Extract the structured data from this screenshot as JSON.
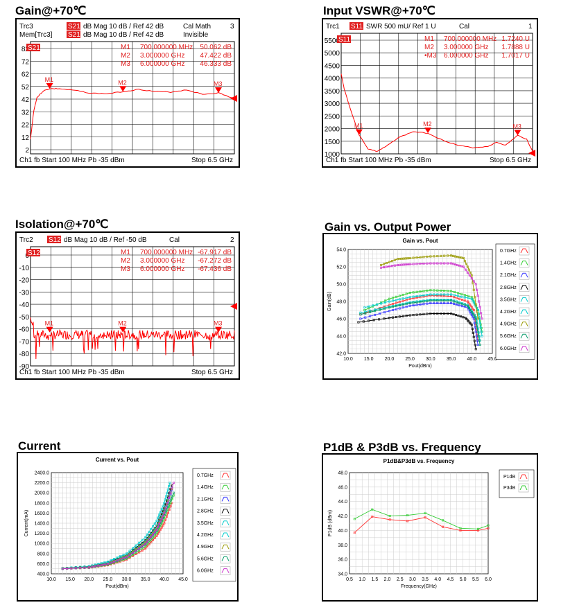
{
  "titles": {
    "gain": "Gain@+70℃",
    "vswr": "Input VSWR@+70℃",
    "isolation": "Isolation@+70℃",
    "gain_pout": "Gain vs. Output Power",
    "current": "Current",
    "p1db": "P1dB & P3dB vs. Frequency"
  },
  "chart_data": [
    {
      "id": "gain",
      "type": "line",
      "header": [
        {
          "left": "Trc3",
          "badge": "S21",
          "text": "dB Mag   10 dB /  Ref 42 dB",
          "right": "Cal Math",
          "num": "3"
        },
        {
          "left": "Mem[Trc3]",
          "badge": "S21",
          "text": "dB Mag   10 dB /  Ref 42 dB",
          "right": "Invisible",
          "num": ""
        }
      ],
      "trace_label": "S21",
      "markers": [
        {
          "name": "M1",
          "freq": "700.000000 MHz",
          "value": "50.062 dB"
        },
        {
          "name": "M2",
          "freq": "3.000000 GHz",
          "value": "47.422 dB"
        },
        {
          "name": "M3",
          "freq": "6.000000 GHz",
          "value": "46.333 dB"
        }
      ],
      "y_ticks": [
        "82",
        "72",
        "62",
        "52",
        "42",
        "32",
        "22",
        "12",
        "2"
      ],
      "footer": {
        "left": "Ch1  fb  Start  100 MHz  Pb   -35 dBm",
        "right": "Stop  6.5 GHz"
      },
      "x": [
        0.1,
        0.2,
        0.3,
        0.5,
        0.7,
        1.0,
        1.5,
        2.0,
        2.5,
        3.0,
        3.5,
        4.0,
        4.5,
        5.0,
        5.5,
        6.0,
        6.5
      ],
      "y": [
        5,
        30,
        42,
        48,
        50,
        50,
        48.5,
        46,
        45.5,
        47.4,
        49.5,
        47.5,
        47,
        49,
        45,
        46.3,
        41
      ],
      "ylim": [
        -8,
        92
      ],
      "xlim": [
        0.1,
        6.5
      ]
    },
    {
      "id": "vswr",
      "type": "line",
      "header": [
        {
          "left": "Trc1",
          "badge": "S11",
          "text": "SWR   500 mU/  Ref 1 U",
          "right": "Cal",
          "num": "1"
        }
      ],
      "trace_label": "S11",
      "markers": [
        {
          "name": "M1",
          "freq": "700.000000 MHz",
          "value": "1.7240  U"
        },
        {
          "name": "M2",
          "freq": "3.000000 GHz",
          "value": "1.7888  U"
        },
        {
          "name": "•M3",
          "freq": "6.000000 GHz",
          "value": "1.7017  U"
        }
      ],
      "y_ticks": [
        "5500",
        "5000",
        "4500",
        "4000",
        "3500",
        "3000",
        "2500",
        "2000",
        "1500",
        "1000"
      ],
      "footer": {
        "left": "Ch1  fb  Start  100 MHz  Pb   -35 dBm",
        "right": "Stop  6.5 GHz"
      },
      "x": [
        0.1,
        0.2,
        0.4,
        0.7,
        1.0,
        1.3,
        1.6,
        2.0,
        2.5,
        3.0,
        3.5,
        4.0,
        4.5,
        5.0,
        5.3,
        5.6,
        6.0,
        6.3,
        6.5
      ],
      "y": [
        4.2,
        3.6,
        2.8,
        1.72,
        1.15,
        1.05,
        1.25,
        1.6,
        1.85,
        1.79,
        1.5,
        1.3,
        1.2,
        1.25,
        1.42,
        1.3,
        1.7,
        1.55,
        1.05
      ],
      "ylim": [
        0.95,
        5.85
      ],
      "xlim": [
        0.1,
        6.5
      ]
    },
    {
      "id": "isolation",
      "type": "line",
      "header": [
        {
          "left": "Trc2",
          "badge": "S12",
          "text": "dB Mag   10 dB /  Ref -50 dB",
          "right": "Cal",
          "num": "2"
        }
      ],
      "trace_label": "S12",
      "markers": [
        {
          "name": "M1",
          "freq": "700.000000 MHz",
          "value": "-67.917 dB"
        },
        {
          "name": "M2",
          "freq": "3.000000 GHz",
          "value": "-67.272 dB"
        },
        {
          "name": "M3",
          "freq": "6.000000 GHz",
          "value": "-67.436 dB"
        }
      ],
      "y_ticks": [
        "0",
        "-10",
        "-20",
        "-30",
        "-40",
        "-50",
        "-60",
        "-70",
        "-80",
        "-90"
      ],
      "footer": {
        "left": "Ch1  fb  Start  100 MHz  Pb   -35 dBm",
        "right": "Stop  6.5 GHz"
      },
      "x": [
        0.1,
        6.5
      ],
      "y": [
        -68,
        -68
      ],
      "ylim": [
        -95,
        8
      ],
      "xlim": [
        0.1,
        6.5
      ]
    },
    {
      "id": "gain_pout",
      "type": "line",
      "title": "Gain vs. Pout",
      "xlabel": "Pout(dBm)",
      "ylabel": "Gain(dB)",
      "xlim": [
        10,
        45
      ],
      "ylim": [
        42,
        54
      ],
      "x_ticks": [
        "10.0",
        "15.0",
        "20.0",
        "25.0",
        "30.0",
        "35.0",
        "40.0",
        "45.0"
      ],
      "y_ticks": [
        "42.0",
        "44.0",
        "46.0",
        "48.0",
        "50.0",
        "52.0",
        "54.0"
      ],
      "series": [
        {
          "name": "0.7GHz",
          "color": "#ff3333",
          "x": [
            13,
            20,
            25,
            30,
            35,
            39,
            40.5,
            41.5
          ],
          "y": [
            46.5,
            47.6,
            48.3,
            48.7,
            48.6,
            48.0,
            47.0,
            43.5
          ]
        },
        {
          "name": "1.4GHz",
          "color": "#33cc33",
          "x": [
            14,
            20,
            25,
            30,
            35,
            40,
            41.5,
            42.5
          ],
          "y": [
            47.0,
            48.3,
            49.0,
            49.3,
            49.2,
            48.5,
            47.0,
            44.5
          ]
        },
        {
          "name": "2.1GHz",
          "color": "#3333ff",
          "x": [
            13,
            20,
            25,
            30,
            35,
            39,
            40.5,
            41.5
          ],
          "y": [
            46.0,
            46.9,
            47.5,
            47.8,
            47.8,
            47.3,
            46.0,
            43.0
          ]
        },
        {
          "name": "2.8GHz",
          "color": "#000000",
          "x": [
            12.5,
            20,
            25,
            30,
            35,
            38.5,
            40,
            41
          ],
          "y": [
            45.6,
            46.1,
            46.4,
            46.6,
            46.6,
            46.1,
            45.3,
            42.5
          ]
        },
        {
          "name": "3.5GHz",
          "color": "#00cccc",
          "x": [
            14,
            20,
            25,
            30,
            35,
            40,
            41.5,
            42.5
          ],
          "y": [
            47.3,
            48.0,
            48.5,
            48.8,
            48.8,
            48.3,
            47.0,
            44.0
          ]
        },
        {
          "name": "4.2GHz",
          "color": "#00cccc",
          "x": [
            13,
            20,
            25,
            30,
            35,
            39,
            41,
            42
          ],
          "y": [
            46.7,
            47.4,
            47.9,
            48.2,
            48.2,
            47.6,
            46.2,
            43.5
          ]
        },
        {
          "name": "4.9GHz",
          "color": "#999900",
          "x": [
            18,
            22,
            25,
            30,
            35,
            38,
            40,
            41.5
          ],
          "y": [
            52.2,
            52.9,
            53.0,
            53.2,
            53.3,
            53.0,
            51.0,
            46.0
          ]
        },
        {
          "name": "5.6GHz",
          "color": "#009966",
          "x": [
            13,
            20,
            25,
            30,
            35,
            39,
            41,
            42
          ],
          "y": [
            46.5,
            47.3,
            47.8,
            48.1,
            48.1,
            47.5,
            46.0,
            43.0
          ]
        },
        {
          "name": "6.0GHz",
          "color": "#cc33cc",
          "x": [
            18,
            22,
            25,
            30,
            35,
            38,
            41,
            42.5
          ],
          "y": [
            51.9,
            52.2,
            52.3,
            52.4,
            52.4,
            52.0,
            50.0,
            46.0
          ]
        }
      ]
    },
    {
      "id": "current",
      "type": "line",
      "title": "Current vs. Pout",
      "xlabel": "Pout(dBm)",
      "ylabel": "Current(mA)",
      "xlim": [
        10,
        45
      ],
      "ylim": [
        400,
        2400
      ],
      "x_ticks": [
        "10.0",
        "15.0",
        "20.0",
        "25.0",
        "30.0",
        "35.0",
        "40.0",
        "45.0"
      ],
      "y_ticks": [
        "400.0",
        "600.0",
        "800.0",
        "1000.0",
        "1200.0",
        "1400.0",
        "1600.0",
        "1800.0",
        "2000.0",
        "2200.0",
        "2400.0"
      ],
      "series": [
        {
          "name": "0.7GHz",
          "color": "#ff3333",
          "x": [
            13,
            20,
            25,
            30,
            35,
            38,
            40,
            42
          ],
          "y": [
            500,
            520,
            570,
            680,
            900,
            1150,
            1400,
            1800
          ]
        },
        {
          "name": "1.4GHz",
          "color": "#33cc33",
          "x": [
            13,
            20,
            25,
            30,
            35,
            38,
            40,
            42.5
          ],
          "y": [
            500,
            520,
            580,
            700,
            940,
            1200,
            1500,
            1950
          ]
        },
        {
          "name": "2.1GHz",
          "color": "#3333ff",
          "x": [
            13,
            20,
            25,
            30,
            35,
            38,
            40,
            42
          ],
          "y": [
            500,
            530,
            600,
            740,
            1000,
            1280,
            1600,
            2050
          ]
        },
        {
          "name": "2.8GHz",
          "color": "#000000",
          "x": [
            13,
            20,
            25,
            30,
            35,
            38,
            40,
            42
          ],
          "y": [
            510,
            540,
            620,
            770,
            1060,
            1350,
            1700,
            2150
          ]
        },
        {
          "name": "3.5GHz",
          "color": "#00cccc",
          "x": [
            13,
            20,
            25,
            30,
            35,
            38,
            40,
            41.5
          ],
          "y": [
            510,
            550,
            640,
            800,
            1120,
            1450,
            1800,
            2200
          ]
        },
        {
          "name": "4.2GHz",
          "color": "#00cccc",
          "x": [
            13,
            20,
            25,
            30,
            35,
            38,
            40,
            42
          ],
          "y": [
            505,
            535,
            610,
            760,
            1040,
            1330,
            1650,
            2100
          ]
        },
        {
          "name": "4.9GHz",
          "color": "#999900",
          "x": [
            13,
            20,
            25,
            30,
            35,
            38,
            40,
            42
          ],
          "y": [
            505,
            530,
            600,
            750,
            1020,
            1300,
            1620,
            2080
          ]
        },
        {
          "name": "5.6GHz",
          "color": "#009966",
          "x": [
            13,
            20,
            25,
            30,
            35,
            38,
            40,
            42.5
          ],
          "y": [
            500,
            525,
            590,
            720,
            980,
            1250,
            1560,
            2000
          ]
        },
        {
          "name": "6.0GHz",
          "color": "#cc33cc",
          "x": [
            13,
            20,
            25,
            30,
            35,
            38,
            40,
            42.5
          ],
          "y": [
            500,
            525,
            595,
            730,
            990,
            1270,
            1600,
            2200
          ]
        }
      ]
    },
    {
      "id": "p1db",
      "type": "line",
      "title": "P1dB&P3dB vs. Frequency",
      "xlabel": "Frequency(GHz)",
      "ylabel": "P1dB (dBm)",
      "xlim": [
        0.5,
        6.0
      ],
      "ylim": [
        34,
        48
      ],
      "x_ticks": [
        "0.5",
        "1.0",
        "1.5",
        "2.0",
        "2.5",
        "3.0",
        "3.5",
        "4.0",
        "4.5",
        "5.0",
        "5.5",
        "6.0"
      ],
      "y_ticks": [
        "34.0",
        "36.0",
        "38.0",
        "40.0",
        "42.0",
        "44.0",
        "46.0",
        "48.0"
      ],
      "series": [
        {
          "name": "P1dB",
          "color": "#ff3333",
          "x": [
            0.7,
            1.4,
            2.1,
            2.8,
            3.5,
            4.2,
            4.9,
            5.6,
            6.0
          ],
          "y": [
            39.7,
            41.9,
            41.5,
            41.3,
            41.8,
            40.5,
            40.0,
            40.0,
            40.3
          ]
        },
        {
          "name": "P3dB",
          "color": "#33cc33",
          "x": [
            0.7,
            1.4,
            2.1,
            2.8,
            3.5,
            4.2,
            4.9,
            5.6,
            6.0
          ],
          "y": [
            41.6,
            42.9,
            42.0,
            42.1,
            42.4,
            41.4,
            40.3,
            40.2,
            40.7
          ]
        }
      ]
    }
  ]
}
